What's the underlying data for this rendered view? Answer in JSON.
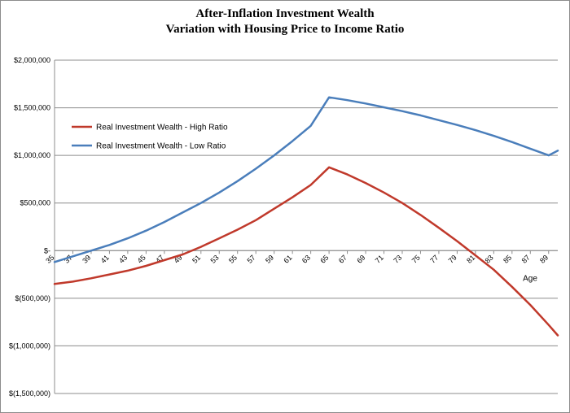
{
  "chart_data": {
    "type": "line",
    "title": "After-Inflation Investment Wealth",
    "subtitle": "Variation with Housing Price to Income Ratio",
    "xlabel": "Age",
    "ylabel": "",
    "ylim": [
      -1500000,
      2000000
    ],
    "y_ticks": [
      2000000,
      1500000,
      1000000,
      500000,
      0,
      -500000,
      -1000000,
      -1500000
    ],
    "y_tick_labels": [
      "$2,000,000",
      "$1,500,000",
      "$1,000,000",
      "$500,000",
      "$-",
      "$(500,000)",
      "$(1,000,000)",
      "$(1,500,000)"
    ],
    "x_ticks": [
      35,
      37,
      39,
      41,
      43,
      45,
      47,
      49,
      51,
      53,
      55,
      57,
      59,
      61,
      63,
      65,
      67,
      69,
      71,
      73,
      75,
      77,
      79,
      81,
      83,
      85,
      87,
      89
    ],
    "xlim": [
      35,
      90
    ],
    "grid": "horizontal",
    "legend_position": "left",
    "series": [
      {
        "name": "Real Investment Wealth - High Ratio",
        "color": "#c0392b",
        "x": [
          35,
          37,
          39,
          41,
          43,
          45,
          47,
          49,
          51,
          53,
          55,
          57,
          59,
          61,
          63,
          65,
          67,
          69,
          71,
          73,
          75,
          77,
          79,
          81,
          83,
          85,
          87,
          89,
          90
        ],
        "values": [
          -350000,
          -325000,
          -290000,
          -250000,
          -210000,
          -160000,
          -100000,
          -40000,
          40000,
          130000,
          220000,
          320000,
          440000,
          560000,
          690000,
          875000,
          800000,
          710000,
          610000,
          500000,
          375000,
          240000,
          100000,
          -50000,
          -200000,
          -380000,
          -570000,
          -780000,
          -890000
        ]
      },
      {
        "name": "Real Investment Wealth - Low Ratio",
        "color": "#4a7ebb",
        "x": [
          35,
          37,
          39,
          41,
          43,
          45,
          47,
          49,
          51,
          53,
          55,
          57,
          59,
          61,
          63,
          65,
          67,
          69,
          71,
          73,
          75,
          77,
          79,
          81,
          83,
          85,
          87,
          89,
          90
        ],
        "values": [
          -120000,
          -60000,
          0,
          60000,
          130000,
          210000,
          300000,
          400000,
          500000,
          610000,
          730000,
          860000,
          1000000,
          1150000,
          1310000,
          1610000,
          1580000,
          1545000,
          1505000,
          1465000,
          1420000,
          1370000,
          1320000,
          1265000,
          1205000,
          1140000,
          1070000,
          1000000,
          1050000
        ]
      }
    ]
  }
}
